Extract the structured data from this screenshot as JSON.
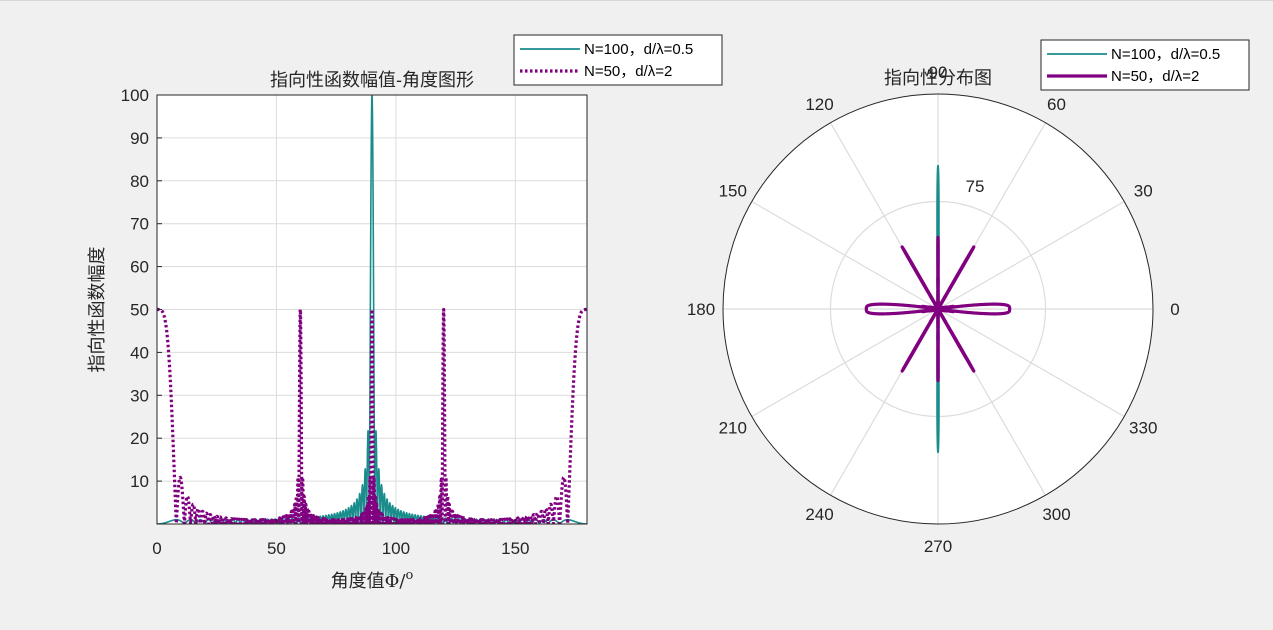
{
  "window": {
    "background": "#f0f0f0"
  },
  "chart_data": [
    {
      "type": "line",
      "title": "指向性函数幅值-角度图形",
      "xlabel": "角度值Φ/",
      "xlabel_superscript": "o",
      "ylabel": "指向性函数幅度",
      "xlim": [
        0,
        180
      ],
      "ylim": [
        0,
        100
      ],
      "xticks": [
        0,
        50,
        100,
        150
      ],
      "yticks": [
        10,
        20,
        30,
        40,
        50,
        60,
        70,
        80,
        90,
        100
      ],
      "grid": true,
      "legend_position": "top-right, outside",
      "series": [
        {
          "name": "N=100，d/λ=0.5",
          "color": "#1a8c8c",
          "line_style": "solid",
          "N": 100,
          "d_over_lambda": 0.5,
          "peak": {
            "x": 90,
            "y": 100
          }
        },
        {
          "name": "N=50，d/λ=2",
          "color": "#800080",
          "line_style": "dotted",
          "N": 50,
          "d_over_lambda": 2,
          "peaks": [
            {
              "x": 0,
              "y": 50
            },
            {
              "x": 60,
              "y": 48
            },
            {
              "x": 90,
              "y": 50
            },
            {
              "x": 120,
              "y": 48
            },
            {
              "x": 180,
              "y": 50
            }
          ]
        }
      ]
    },
    {
      "type": "polar",
      "title": "指向性分布图",
      "angle_ticks": [
        0,
        30,
        60,
        90,
        120,
        150,
        180,
        210,
        240,
        270,
        300,
        330
      ],
      "radius_tick_label": "75",
      "legend_position": "top-right, outside",
      "series": [
        {
          "name": "N=100，d/λ=0.5",
          "color": "#1a8c8c",
          "line_style": "solid",
          "N": 100,
          "d_over_lambda": 0.5
        },
        {
          "name": "N=50，d/λ=2",
          "color": "#800080",
          "line_style": "solid",
          "N": 50,
          "d_over_lambda": 2
        }
      ]
    }
  ]
}
